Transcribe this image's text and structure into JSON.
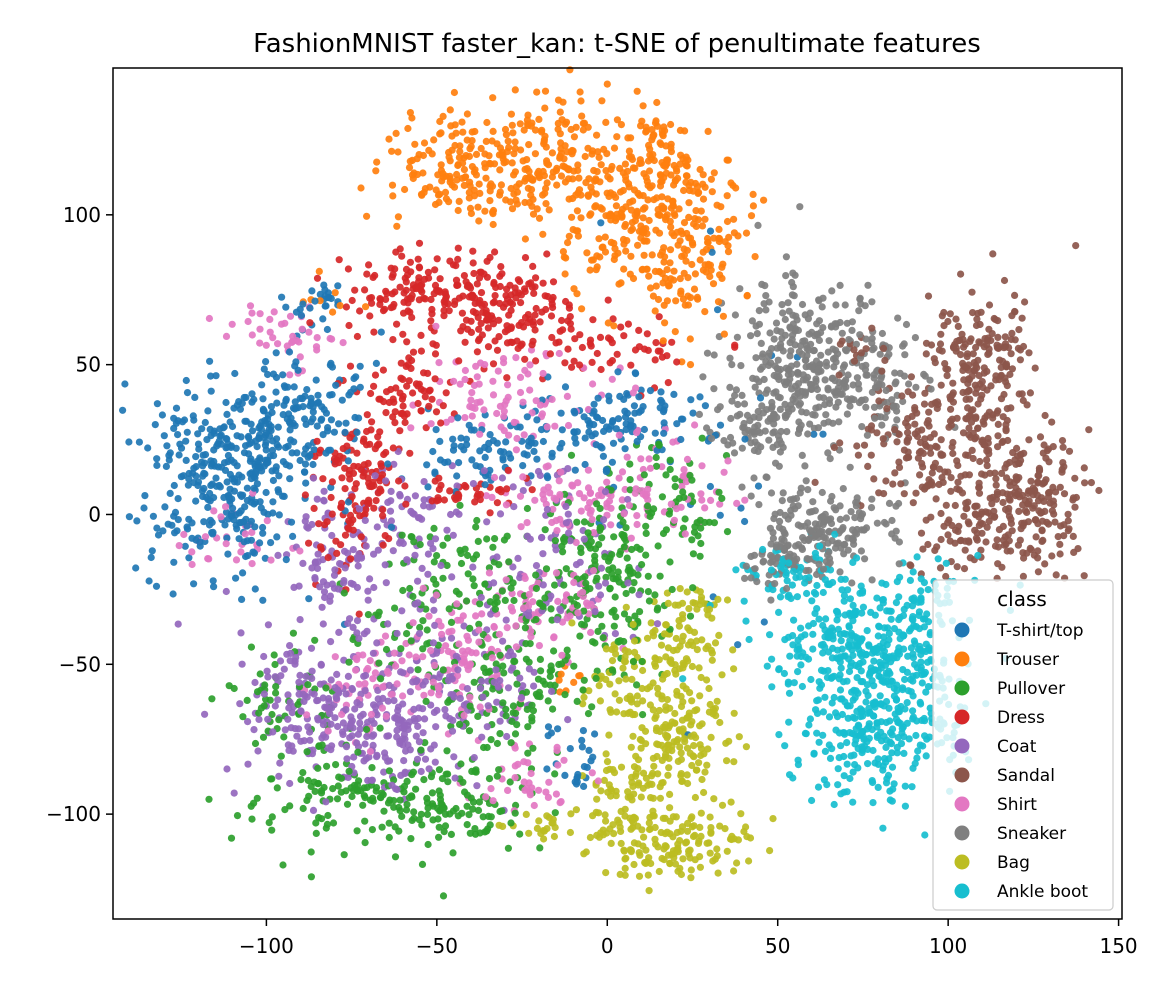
{
  "chart_data": {
    "type": "scatter",
    "title": "FashionMNIST faster_kan: t-SNE of penultimate features",
    "xlabel": "",
    "ylabel": "",
    "xlim": [
      -145,
      151
    ],
    "ylim": [
      -135,
      149
    ],
    "x_ticks": [
      -100,
      -50,
      0,
      50,
      100,
      150
    ],
    "x_tick_labels": [
      "−100",
      "−50",
      "0",
      "50",
      "100",
      "150"
    ],
    "y_ticks": [
      -100,
      -50,
      0,
      50,
      100
    ],
    "y_tick_labels": [
      "−100",
      "−50",
      "0",
      "50",
      "100"
    ],
    "grid": false,
    "legend": {
      "title": "class",
      "placement": "lower-right"
    },
    "series": [
      {
        "name": "T-shirt/top",
        "color": "#1f77b4",
        "clusters": [
          {
            "cx": -112,
            "cy": 10,
            "sx": 12,
            "sy": 17,
            "n": 360
          },
          {
            "cx": -90,
            "cy": 33,
            "sx": 9,
            "sy": 12,
            "n": 120
          },
          {
            "cx": -85,
            "cy": 72,
            "sx": 4,
            "sy": 3,
            "n": 25
          },
          {
            "cx": -35,
            "cy": 22,
            "sx": 12,
            "sy": 6,
            "n": 80
          },
          {
            "cx": 0,
            "cy": 32,
            "sx": 14,
            "sy": 7,
            "n": 110
          },
          {
            "cx": 30,
            "cy": 20,
            "sx": 20,
            "sy": 30,
            "n": 30
          },
          {
            "cx": -10,
            "cy": -80,
            "sx": 5,
            "sy": 6,
            "n": 25
          }
        ]
      },
      {
        "name": "Trouser",
        "color": "#ff7f0e",
        "clusters": [
          {
            "cx": -40,
            "cy": 115,
            "sx": 15,
            "sy": 9,
            "n": 180
          },
          {
            "cx": -15,
            "cy": 120,
            "sx": 12,
            "sy": 10,
            "n": 150
          },
          {
            "cx": 5,
            "cy": 100,
            "sx": 10,
            "sy": 12,
            "n": 150
          },
          {
            "cx": 15,
            "cy": 120,
            "sx": 5,
            "sy": 8,
            "n": 70
          },
          {
            "cx": 25,
            "cy": 90,
            "sx": 8,
            "sy": 15,
            "n": 170
          },
          {
            "cx": -80,
            "cy": 70,
            "sx": 4,
            "sy": 5,
            "n": 8
          },
          {
            "cx": -12,
            "cy": -55,
            "sx": 2,
            "sy": 3,
            "n": 8
          }
        ]
      },
      {
        "name": "Pullover",
        "color": "#2ca02c",
        "clusters": [
          {
            "cx": -70,
            "cy": -95,
            "sx": 18,
            "sy": 8,
            "n": 140
          },
          {
            "cx": -40,
            "cy": -100,
            "sx": 12,
            "sy": 7,
            "n": 80
          },
          {
            "cx": -30,
            "cy": -60,
            "sx": 12,
            "sy": 10,
            "n": 120
          },
          {
            "cx": 0,
            "cy": -20,
            "sx": 10,
            "sy": 15,
            "n": 160
          },
          {
            "cx": -50,
            "cy": -30,
            "sx": 14,
            "sy": 12,
            "n": 100
          },
          {
            "cx": -90,
            "cy": -65,
            "sx": 10,
            "sy": 10,
            "n": 60
          },
          {
            "cx": 20,
            "cy": 5,
            "sx": 8,
            "sy": 12,
            "n": 60
          },
          {
            "cx": -20,
            "cy": -20,
            "sx": 12,
            "sy": 10,
            "n": 60
          }
        ]
      },
      {
        "name": "Dress",
        "color": "#d62728",
        "clusters": [
          {
            "cx": -55,
            "cy": 75,
            "sx": 14,
            "sy": 7,
            "n": 140
          },
          {
            "cx": -30,
            "cy": 68,
            "sx": 12,
            "sy": 9,
            "n": 150
          },
          {
            "cx": -60,
            "cy": 40,
            "sx": 8,
            "sy": 8,
            "n": 70
          },
          {
            "cx": -72,
            "cy": 15,
            "sx": 6,
            "sy": 9,
            "n": 90
          },
          {
            "cx": -40,
            "cy": 8,
            "sx": 10,
            "sy": 3,
            "n": 40
          },
          {
            "cx": 5,
            "cy": 55,
            "sx": 14,
            "sy": 6,
            "n": 50
          },
          {
            "cx": -75,
            "cy": -5,
            "sx": 6,
            "sy": 8,
            "n": 40
          }
        ]
      },
      {
        "name": "Coat",
        "color": "#9467bd",
        "clusters": [
          {
            "cx": -85,
            "cy": -65,
            "sx": 12,
            "sy": 10,
            "n": 160
          },
          {
            "cx": -65,
            "cy": -75,
            "sx": 10,
            "sy": 10,
            "n": 120
          },
          {
            "cx": -75,
            "cy": -20,
            "sx": 12,
            "sy": 15,
            "n": 150
          },
          {
            "cx": -40,
            "cy": -55,
            "sx": 12,
            "sy": 12,
            "n": 100
          },
          {
            "cx": -15,
            "cy": -15,
            "sx": 12,
            "sy": 15,
            "n": 90
          },
          {
            "cx": -55,
            "cy": 5,
            "sx": 8,
            "sy": 8,
            "n": 40
          }
        ]
      },
      {
        "name": "Sandal",
        "color": "#8c564b",
        "clusters": [
          {
            "cx": 110,
            "cy": 50,
            "sx": 8,
            "sy": 13,
            "n": 200
          },
          {
            "cx": 95,
            "cy": 25,
            "sx": 12,
            "sy": 10,
            "n": 150
          },
          {
            "cx": 125,
            "cy": 5,
            "sx": 10,
            "sy": 12,
            "n": 200
          },
          {
            "cx": 105,
            "cy": -5,
            "sx": 8,
            "sy": 8,
            "n": 80
          },
          {
            "cx": 75,
            "cy": 55,
            "sx": 6,
            "sy": 4,
            "n": 15
          }
        ]
      },
      {
        "name": "Shirt",
        "color": "#e377c2",
        "clusters": [
          {
            "cx": -95,
            "cy": 60,
            "sx": 8,
            "sy": 5,
            "n": 40
          },
          {
            "cx": -45,
            "cy": -45,
            "sx": 10,
            "sy": 10,
            "n": 100
          },
          {
            "cx": -15,
            "cy": -30,
            "sx": 10,
            "sy": 8,
            "n": 70
          },
          {
            "cx": -10,
            "cy": 5,
            "sx": 12,
            "sy": 6,
            "n": 70
          },
          {
            "cx": 15,
            "cy": 10,
            "sx": 10,
            "sy": 10,
            "n": 60
          },
          {
            "cx": -30,
            "cy": 40,
            "sx": 15,
            "sy": 10,
            "n": 90
          },
          {
            "cx": -70,
            "cy": -60,
            "sx": 8,
            "sy": 8,
            "n": 50
          },
          {
            "cx": -110,
            "cy": -10,
            "sx": 8,
            "sy": 6,
            "n": 30
          },
          {
            "cx": -25,
            "cy": -90,
            "sx": 8,
            "sy": 6,
            "n": 40
          }
        ]
      },
      {
        "name": "Sneaker",
        "color": "#7f7f7f",
        "clusters": [
          {
            "cx": 55,
            "cy": 50,
            "sx": 10,
            "sy": 14,
            "n": 240
          },
          {
            "cx": 75,
            "cy": 45,
            "sx": 10,
            "sy": 10,
            "n": 150
          },
          {
            "cx": 45,
            "cy": 30,
            "sx": 8,
            "sy": 8,
            "n": 80
          },
          {
            "cx": 65,
            "cy": -5,
            "sx": 10,
            "sy": 8,
            "n": 160
          },
          {
            "cx": 52,
            "cy": -15,
            "sx": 6,
            "sy": 5,
            "n": 60
          }
        ]
      },
      {
        "name": "Bag",
        "color": "#bcbd22",
        "clusters": [
          {
            "cx": 10,
            "cy": -55,
            "sx": 8,
            "sy": 10,
            "n": 100
          },
          {
            "cx": 20,
            "cy": -75,
            "sx": 8,
            "sy": 10,
            "n": 140
          },
          {
            "cx": 5,
            "cy": -95,
            "sx": 6,
            "sy": 8,
            "n": 70
          },
          {
            "cx": 20,
            "cy": -110,
            "sx": 12,
            "sy": 6,
            "n": 140
          },
          {
            "cx": 25,
            "cy": -30,
            "sx": 4,
            "sy": 3,
            "n": 25
          },
          {
            "cx": 25,
            "cy": -45,
            "sx": 5,
            "sy": 5,
            "n": 40
          },
          {
            "cx": -20,
            "cy": -103,
            "sx": 6,
            "sy": 3,
            "n": 20
          }
        ]
      },
      {
        "name": "Ankle boot",
        "color": "#17becf",
        "clusters": [
          {
            "cx": 70,
            "cy": -45,
            "sx": 12,
            "sy": 12,
            "n": 240
          },
          {
            "cx": 75,
            "cy": -75,
            "sx": 10,
            "sy": 10,
            "n": 160
          },
          {
            "cx": 85,
            "cy": -55,
            "sx": 10,
            "sy": 14,
            "n": 150
          },
          {
            "cx": 55,
            "cy": -20,
            "sx": 8,
            "sy": 5,
            "n": 60
          },
          {
            "cx": 95,
            "cy": -30,
            "sx": 8,
            "sy": 8,
            "n": 60
          },
          {
            "cx": 100,
            "cy": -70,
            "sx": 4,
            "sy": 6,
            "n": 20
          }
        ]
      }
    ]
  }
}
